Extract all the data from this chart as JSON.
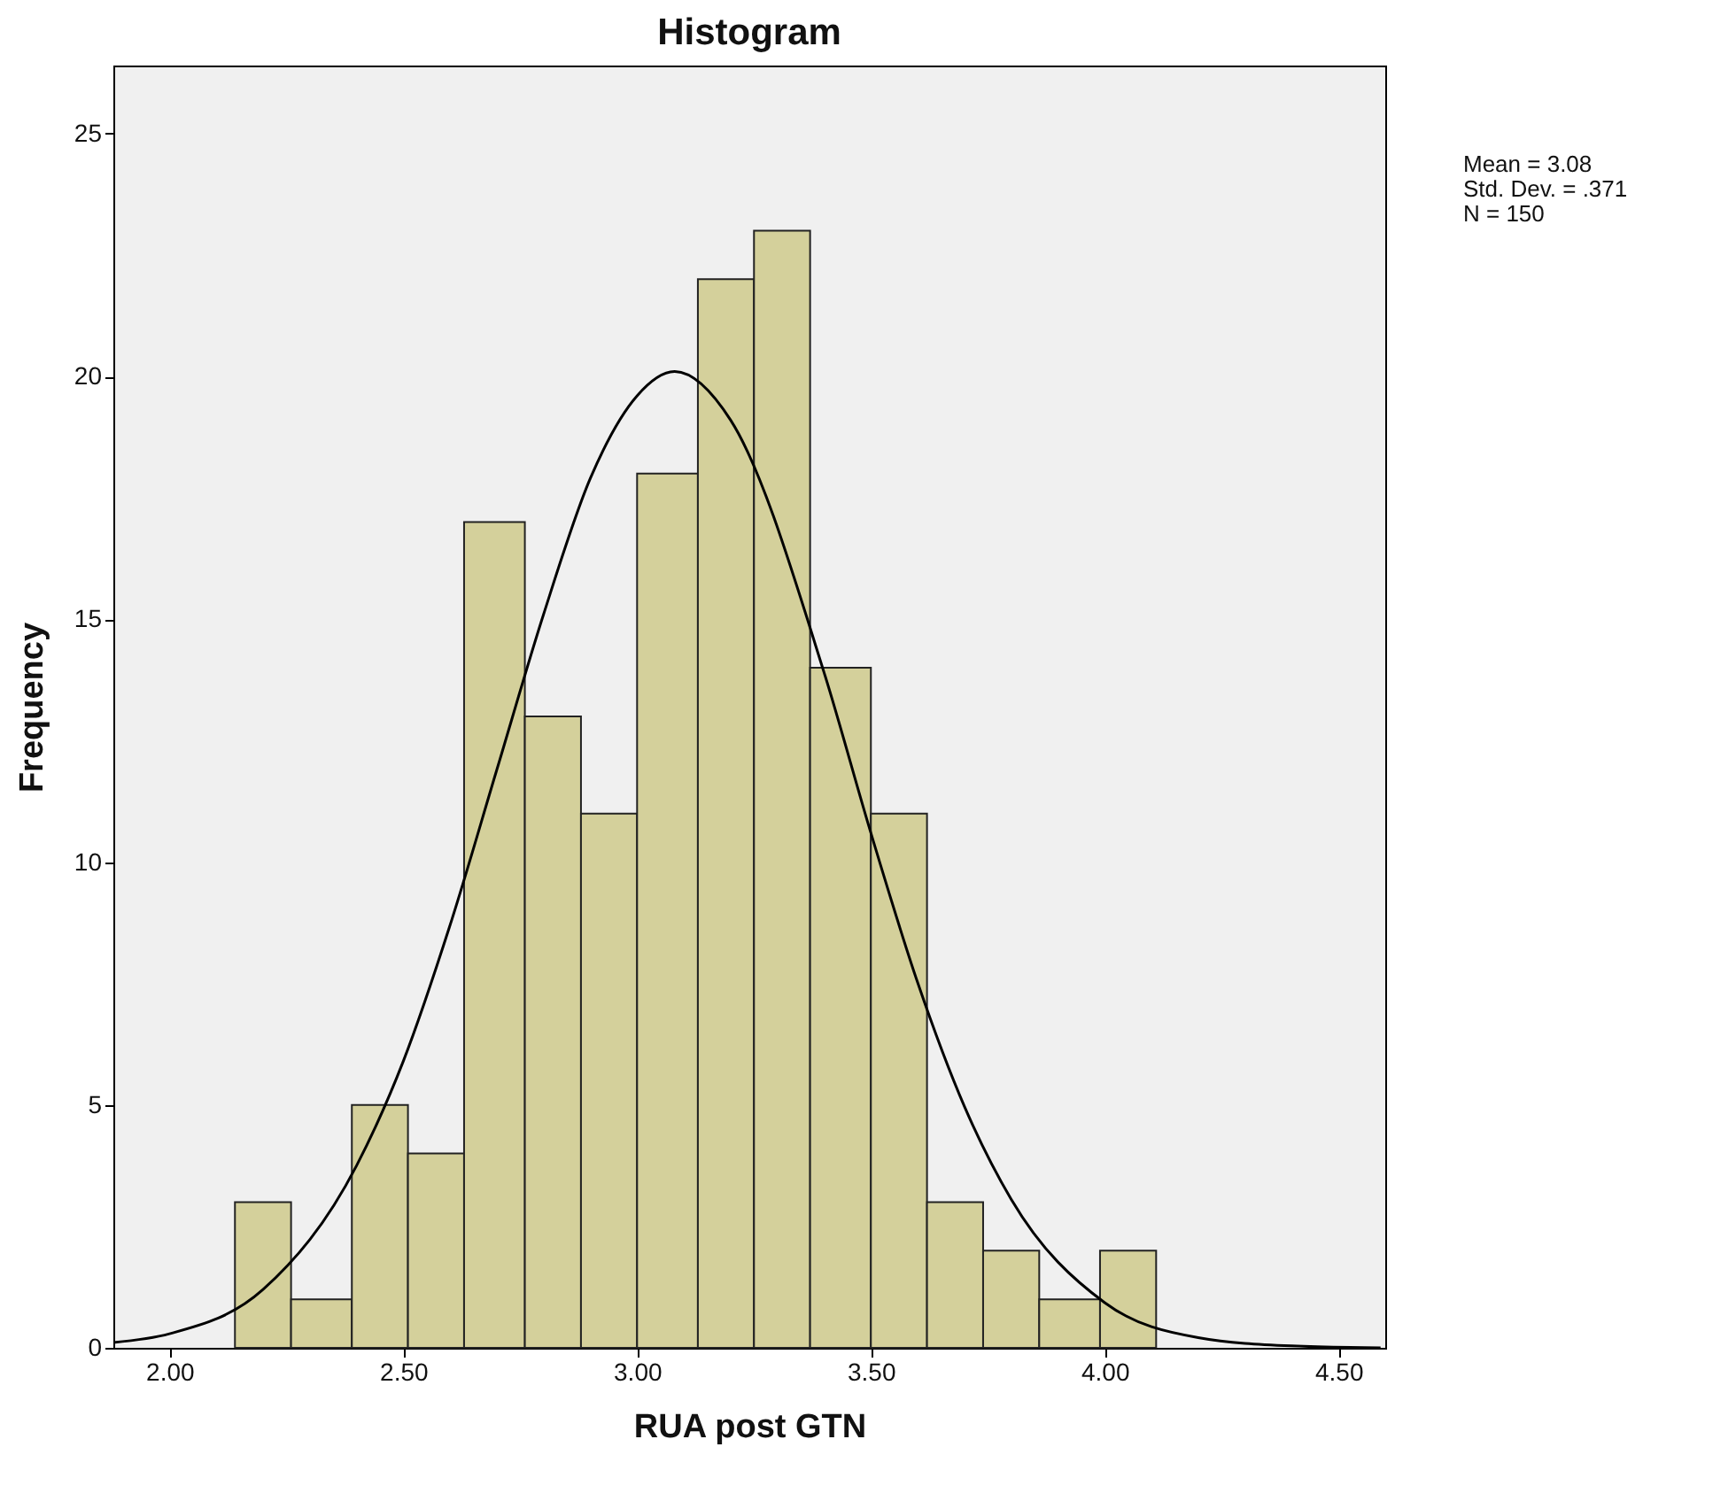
{
  "chart_data": {
    "type": "histogram",
    "title": "Histogram",
    "xlabel": "RUA post GTN",
    "ylabel": "Frequency",
    "bins": [
      2.14,
      2.26,
      2.39,
      2.51,
      2.63,
      2.76,
      2.88,
      3.0,
      3.13,
      3.25,
      3.37,
      3.5,
      3.62,
      3.74,
      3.86,
      3.99,
      4.11
    ],
    "values": [
      3,
      1,
      5,
      4,
      17,
      13,
      11,
      18,
      22,
      23,
      14,
      11,
      3,
      2,
      1,
      2
    ],
    "color": "#d4d09b",
    "series": [
      {
        "type": "line",
        "color": "#000000",
        "x": [
          1.88,
          2.0,
          2.2,
          2.4,
          2.5,
          2.6,
          2.7,
          2.8,
          2.9,
          3.0,
          3.08,
          3.2,
          3.4,
          3.5,
          3.6,
          3.7,
          3.8,
          4.0,
          4.2,
          4.4,
          4.59
        ],
        "values": [
          0.11,
          0.29,
          1.2,
          3.75,
          5.9,
          8.7,
          11.9,
          15.1,
          17.9,
          19.6,
          20.1,
          19.1,
          13.9,
          10.6,
          7.52,
          4.97,
          3.06,
          0.93,
          0.21,
          0.04,
          0.0
        ]
      }
    ],
    "xlim": [
      1.88,
      4.6
    ],
    "xticks": [
      {
        "value": 2.0,
        "label": "2.00"
      },
      {
        "value": 2.5,
        "label": "2.50"
      },
      {
        "value": 3.0,
        "label": "3.00"
      },
      {
        "value": 3.5,
        "label": "3.50"
      },
      {
        "value": 4.0,
        "label": "4.00"
      },
      {
        "value": 4.5,
        "label": "4.50"
      }
    ],
    "ylim": [
      0,
      26.4
    ],
    "yticks": [
      0,
      5,
      10,
      15,
      20,
      25
    ],
    "grid": false,
    "annotations": [
      "Mean = 3.08",
      "Std. Dev. = .371",
      "N = 150"
    ]
  }
}
